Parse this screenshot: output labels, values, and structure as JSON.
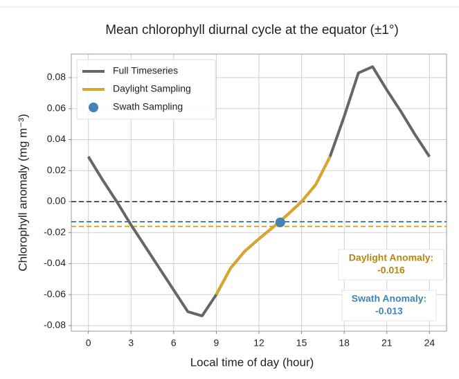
{
  "chart_data": {
    "type": "line",
    "title": "Mean chlorophyll diurnal cycle at the equator (±1°)",
    "x_label": "Local time of day (hour)",
    "y_label": "Chlorophyll anomaly (mg m⁻³)",
    "xlim": [
      -1.2,
      25.2
    ],
    "ylim": [
      -0.0836,
      0.0952
    ],
    "xticks": [
      0,
      3,
      6,
      9,
      12,
      15,
      18,
      21,
      24
    ],
    "yticks": [
      {
        "value": 0.08,
        "label": "0.08"
      },
      {
        "value": 0.06,
        "label": "0.06"
      },
      {
        "value": 0.04,
        "label": "0.04"
      },
      {
        "value": 0.02,
        "label": "0.02"
      },
      {
        "value": 0,
        "label": "0.00"
      },
      {
        "value": -0.02,
        "label": "-0.02"
      },
      {
        "value": -0.04,
        "label": "-0.04"
      },
      {
        "value": -0.06,
        "label": "-0.06"
      },
      {
        "value": -0.08,
        "label": "-0.08"
      }
    ],
    "grid": true,
    "legend": "upper left",
    "series": [
      {
        "name": "Full Timeseries",
        "color": "#666666",
        "marker": "line",
        "x": [
          0,
          1,
          2,
          3,
          4,
          5,
          6,
          7,
          8,
          9,
          10,
          11,
          12,
          13,
          14,
          15,
          16,
          17,
          18,
          19,
          20,
          21,
          22,
          23,
          24
        ],
        "values": [
          0.029,
          0.014,
          0.0,
          -0.015,
          -0.029,
          -0.043,
          -0.057,
          -0.071,
          -0.0737,
          -0.06,
          -0.043,
          -0.032,
          -0.024,
          -0.0165,
          -0.0085,
          0.0,
          0.011,
          0.029,
          0.055,
          0.083,
          0.087,
          0.072,
          0.058,
          0.043,
          0.029
        ]
      },
      {
        "name": "Daylight Sampling",
        "color": "#d9a62a",
        "marker": "line",
        "x": [
          9,
          10,
          11,
          12,
          13,
          14,
          15,
          16,
          17
        ],
        "values": [
          -0.06,
          -0.043,
          -0.032,
          -0.024,
          -0.0165,
          -0.0085,
          0.0,
          0.011,
          0.029
        ]
      },
      {
        "name": "Swath Sampling",
        "color": "#4682b4",
        "marker": "dot",
        "x": [
          13.5
        ],
        "values": [
          -0.0134
        ]
      }
    ],
    "reference_lines": [
      {
        "value": 0,
        "color": "#555555"
      }
    ],
    "annotations": [
      {
        "label": "Daylight Anomaly:",
        "value": -0.016,
        "color": "#b8860b",
        "line_color": "#d9a62a"
      },
      {
        "label": "Swath Anomaly:",
        "value": -0.013,
        "color": "#4682b4",
        "line_color": "#4682b4"
      }
    ]
  }
}
